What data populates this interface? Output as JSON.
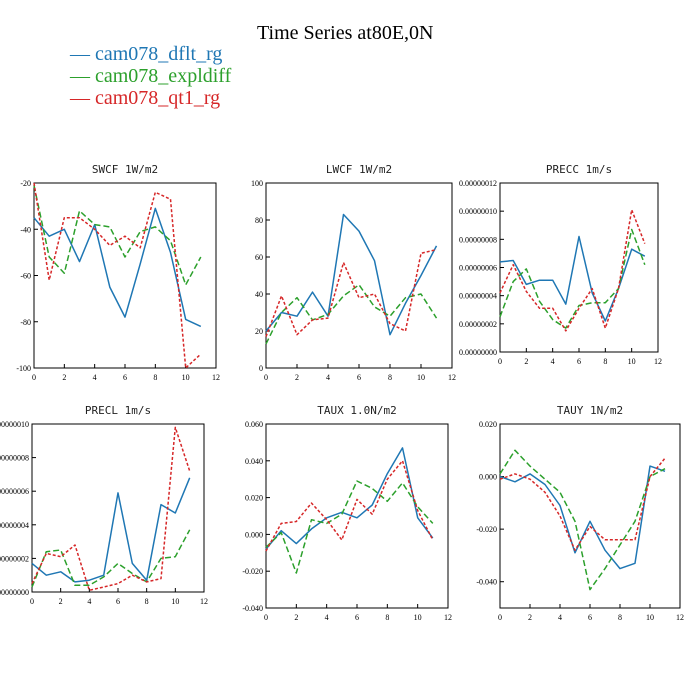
{
  "figure_title": "Time Series at80E,0N",
  "legend": [
    {
      "label": "— cam078_dflt_rg",
      "color": "#1f77b4"
    },
    {
      "label": "— cam078_expldiff",
      "color": "#2ca02c"
    },
    {
      "label": "— cam078_qt1_rg",
      "color": "#d62728"
    }
  ],
  "chart_data": [
    {
      "type": "line",
      "title": "SWCF   1W/m2",
      "x": [
        0,
        1,
        2,
        3,
        4,
        5,
        6,
        7,
        8,
        9,
        10,
        11
      ],
      "xlim": [
        0,
        12
      ],
      "xticks": [
        "0",
        "2",
        "4",
        "6",
        "8",
        "10",
        "12"
      ],
      "ylim": [
        -100,
        -20
      ],
      "yticks": [
        "-100",
        "-80",
        "-60",
        "-40",
        "-20"
      ],
      "series": [
        {
          "name": "cam078_dflt_rg",
          "color": "#1f77b4",
          "dash": "",
          "values": [
            -35,
            -43,
            -40,
            -54,
            -38,
            -65,
            -78,
            -55,
            -31,
            -50,
            -79,
            -82
          ]
        },
        {
          "name": "cam078_expldiff",
          "color": "#2ca02c",
          "dash": "6,3",
          "values": [
            -21,
            -52,
            -59,
            -32,
            -38,
            -39,
            -52,
            -41,
            -39,
            -45,
            -64,
            -52
          ]
        },
        {
          "name": "cam078_qt1_rg",
          "color": "#d62728",
          "dash": "3,2",
          "values": [
            -20,
            -62,
            -35,
            -35,
            -40,
            -47,
            -43,
            -48,
            -24,
            -27,
            -100,
            -94
          ]
        }
      ]
    },
    {
      "type": "line",
      "title": "LWCF   1W/m2",
      "x": [
        0,
        1,
        2,
        3,
        4,
        5,
        6,
        7,
        8,
        9,
        10,
        11
      ],
      "xlim": [
        0,
        12
      ],
      "xticks": [
        "0",
        "2",
        "4",
        "6",
        "8",
        "10",
        "12"
      ],
      "ylim": [
        0,
        100
      ],
      "yticks": [
        "0",
        "20",
        "40",
        "60",
        "80",
        "100"
      ],
      "series": [
        {
          "name": "cam078_dflt_rg",
          "color": "#1f77b4",
          "dash": "",
          "values": [
            20,
            30,
            28,
            41,
            28,
            83,
            74,
            58,
            18,
            35,
            50,
            66
          ]
        },
        {
          "name": "cam078_expldiff",
          "color": "#2ca02c",
          "dash": "6,3",
          "values": [
            13,
            30,
            38,
            26,
            29,
            39,
            45,
            33,
            28,
            38,
            40,
            27
          ]
        },
        {
          "name": "cam078_qt1_rg",
          "color": "#d62728",
          "dash": "3,2",
          "values": [
            17,
            39,
            18,
            26,
            27,
            57,
            38,
            40,
            24,
            20,
            62,
            64
          ]
        }
      ]
    },
    {
      "type": "line",
      "title": "PRECC   1m/s",
      "x": [
        0,
        1,
        2,
        3,
        4,
        5,
        6,
        7,
        8,
        9,
        10,
        11
      ],
      "xlim": [
        0,
        12
      ],
      "xticks": [
        "0",
        "2",
        "4",
        "6",
        "8",
        "10",
        "12"
      ],
      "ylim": [
        0,
        1.2e-07
      ],
      "yticks": [
        "0.00000000",
        "0.00000002",
        "0.00000004",
        "0.00000006",
        "0.00000008",
        "0.00000010",
        "0.00000012"
      ],
      "series": [
        {
          "name": "cam078_dflt_rg",
          "color": "#1f77b4",
          "dash": "",
          "values": [
            6.4e-08,
            6.5e-08,
            4.8e-08,
            5.1e-08,
            5.1e-08,
            3.4e-08,
            8.2e-08,
            4.2e-08,
            2.2e-08,
            4.5e-08,
            7.3e-08,
            6.8e-08
          ]
        },
        {
          "name": "cam078_expldiff",
          "color": "#2ca02c",
          "dash": "6,3",
          "values": [
            2.5e-08,
            5e-08,
            5.9e-08,
            3.6e-08,
            2.3e-08,
            1.7e-08,
            3.3e-08,
            3.5e-08,
            3.5e-08,
            4.5e-08,
            8.7e-08,
            6.2e-08
          ]
        },
        {
          "name": "cam078_qt1_rg",
          "color": "#d62728",
          "dash": "3,2",
          "values": [
            4.2e-08,
            6.2e-08,
            4.3e-08,
            3.1e-08,
            3.1e-08,
            1.5e-08,
            3.1e-08,
            4.5e-08,
            1.7e-08,
            4.5e-08,
            1.01e-07,
            7.7e-08
          ]
        }
      ]
    },
    {
      "type": "line",
      "title": "PRECL   1m/s",
      "x": [
        0,
        1,
        2,
        3,
        4,
        5,
        6,
        7,
        8,
        9,
        10,
        11
      ],
      "xlim": [
        0,
        12
      ],
      "xticks": [
        "0",
        "2",
        "4",
        "6",
        "8",
        "10",
        "12"
      ],
      "ylim": [
        0,
        1e-07
      ],
      "yticks": [
        "0.00000000",
        "0.00000002",
        "0.00000004",
        "0.00000006",
        "0.00000008",
        "0.00000010"
      ],
      "series": [
        {
          "name": "cam078_dflt_rg",
          "color": "#1f77b4",
          "dash": "",
          "values": [
            1.7e-08,
            1e-08,
            1.2e-08,
            6e-09,
            7e-09,
            1e-08,
            5.9e-08,
            1.7e-08,
            7e-09,
            5.2e-08,
            4.7e-08,
            6.8e-08
          ]
        },
        {
          "name": "cam078_expldiff",
          "color": "#2ca02c",
          "dash": "6,3",
          "values": [
            3e-09,
            2.4e-08,
            2.5e-08,
            4e-09,
            4e-09,
            9e-09,
            1.7e-08,
            1.1e-08,
            6e-09,
            2e-08,
            2.1e-08,
            3.7e-08
          ]
        },
        {
          "name": "cam078_qt1_rg",
          "color": "#d62728",
          "dash": "3,2",
          "values": [
            5e-09,
            2.3e-08,
            2.1e-08,
            2.8e-08,
            1e-09,
            3e-09,
            5e-09,
            1e-08,
            6e-09,
            8e-09,
            9.8e-08,
            7.2e-08
          ]
        }
      ]
    },
    {
      "type": "line",
      "title": "TAUX   1.0N/m2",
      "x": [
        0,
        1,
        2,
        3,
        4,
        5,
        6,
        7,
        8,
        9,
        10,
        11
      ],
      "xlim": [
        0,
        12
      ],
      "xticks": [
        "0",
        "2",
        "4",
        "6",
        "8",
        "10",
        "12"
      ],
      "ylim": [
        -0.04,
        0.06
      ],
      "yticks": [
        "-0.040",
        "-0.020",
        "0.000",
        "0.020",
        "0.040",
        "0.060"
      ],
      "series": [
        {
          "name": "cam078_dflt_rg",
          "color": "#1f77b4",
          "dash": "",
          "values": [
            -0.008,
            0.002,
            -0.005,
            0.003,
            0.009,
            0.012,
            0.009,
            0.016,
            0.033,
            0.047,
            0.009,
            -0.002
          ]
        },
        {
          "name": "cam078_expldiff",
          "color": "#2ca02c",
          "dash": "6,3",
          "values": [
            -0.007,
            0.001,
            -0.021,
            0.008,
            0.006,
            0.011,
            0.029,
            0.025,
            0.018,
            0.028,
            0.015,
            0.006
          ]
        },
        {
          "name": "cam078_qt1_rg",
          "color": "#d62728",
          "dash": "3,2",
          "values": [
            -0.009,
            0.006,
            0.007,
            0.017,
            0.008,
            -0.003,
            0.019,
            0.011,
            0.03,
            0.04,
            0.013,
            -0.003
          ]
        }
      ]
    },
    {
      "type": "line",
      "title": "TAUY   1N/m2",
      "x": [
        0,
        1,
        2,
        3,
        4,
        5,
        6,
        7,
        8,
        9,
        10,
        11
      ],
      "xlim": [
        0,
        12
      ],
      "xticks": [
        "0",
        "2",
        "4",
        "6",
        "8",
        "10",
        "12"
      ],
      "ylim": [
        -0.05,
        0.02
      ],
      "yticks": [
        "-0.040",
        "-0.020",
        "0.000",
        "0.020"
      ],
      "series": [
        {
          "name": "cam078_dflt_rg",
          "color": "#1f77b4",
          "dash": "",
          "values": [
            0.0,
            -0.002,
            0.001,
            -0.003,
            -0.011,
            -0.029,
            -0.017,
            -0.028,
            -0.035,
            -0.033,
            0.004,
            0.002
          ]
        },
        {
          "name": "cam078_expldiff",
          "color": "#2ca02c",
          "dash": "6,3",
          "values": [
            0.001,
            0.01,
            0.004,
            -0.001,
            -0.006,
            -0.017,
            -0.043,
            -0.035,
            -0.026,
            -0.017,
            0.0,
            0.003
          ]
        },
        {
          "name": "cam078_qt1_rg",
          "color": "#d62728",
          "dash": "3,2",
          "values": [
            -0.001,
            0.001,
            -0.001,
            -0.006,
            -0.015,
            -0.028,
            -0.019,
            -0.024,
            -0.024,
            -0.024,
            0.0,
            0.007
          ]
        }
      ]
    }
  ]
}
